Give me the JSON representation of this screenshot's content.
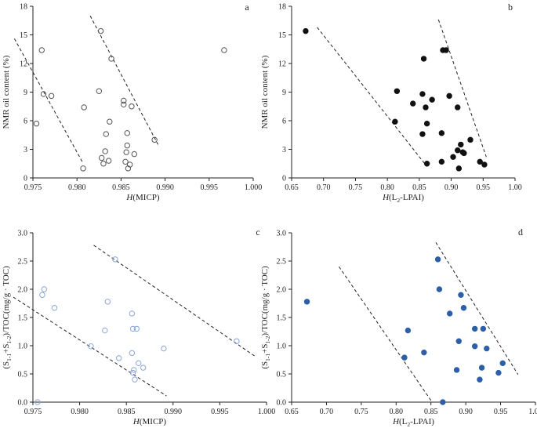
{
  "chart_data": [
    {
      "panel": "a",
      "type": "scatter",
      "marker": "open-circle",
      "marker_color": "#555555",
      "xlabel_prefix": "H",
      "xlabel_rest": "(MICP)",
      "ylabel": "NMR oil content  (%)",
      "xlim": [
        0.975,
        1.0
      ],
      "ylim": [
        0,
        18
      ],
      "xticks": [
        "0.975",
        "0.980",
        "0.985",
        "0.990",
        "0.995",
        "1.000"
      ],
      "xtick_values": [
        0.975,
        0.98,
        0.985,
        0.99,
        0.995,
        1.0
      ],
      "yticks": [
        "0",
        "3",
        "6",
        "9",
        "12",
        "15",
        "18"
      ],
      "ytick_values": [
        0,
        3,
        6,
        9,
        12,
        15,
        18
      ],
      "points": [
        {
          "x": 0.976,
          "y": 13.4
        },
        {
          "x": 0.9762,
          "y": 8.8
        },
        {
          "x": 0.9771,
          "y": 8.6
        },
        {
          "x": 0.9754,
          "y": 5.7
        },
        {
          "x": 0.9808,
          "y": 7.4
        },
        {
          "x": 0.9807,
          "y": 1.0
        },
        {
          "x": 0.9825,
          "y": 9.1
        },
        {
          "x": 0.9827,
          "y": 15.4
        },
        {
          "x": 0.9839,
          "y": 12.5
        },
        {
          "x": 0.9837,
          "y": 5.9
        },
        {
          "x": 0.9833,
          "y": 4.6
        },
        {
          "x": 0.9832,
          "y": 2.8
        },
        {
          "x": 0.9836,
          "y": 1.8
        },
        {
          "x": 0.9828,
          "y": 2.1
        },
        {
          "x": 0.983,
          "y": 1.5
        },
        {
          "x": 0.9853,
          "y": 8.1
        },
        {
          "x": 0.9853,
          "y": 7.7
        },
        {
          "x": 0.9862,
          "y": 7.5
        },
        {
          "x": 0.9857,
          "y": 4.7
        },
        {
          "x": 0.9857,
          "y": 3.4
        },
        {
          "x": 0.9856,
          "y": 2.7
        },
        {
          "x": 0.9865,
          "y": 2.5
        },
        {
          "x": 0.9855,
          "y": 1.7
        },
        {
          "x": 0.986,
          "y": 1.4
        },
        {
          "x": 0.9858,
          "y": 1.0
        },
        {
          "x": 0.9888,
          "y": 4.0
        },
        {
          "x": 0.9967,
          "y": 13.4
        }
      ],
      "trend_lines": [
        {
          "x": [
            0.9729,
            0.9806
          ],
          "y": [
            14.6,
            1.7
          ]
        },
        {
          "x": [
            0.9815,
            0.9892
          ],
          "y": [
            17.0,
            3.5
          ]
        }
      ]
    },
    {
      "panel": "b",
      "type": "scatter",
      "marker": "filled-circle",
      "marker_color": "#111111",
      "xlabel_prefix": "H",
      "xlabel_rest": "(L2-LPAI)",
      "ylabel": "NMR oil content  (%)",
      "xlim": [
        0.65,
        1.0
      ],
      "ylim": [
        0,
        18
      ],
      "xticks": [
        "0.65",
        "0.70",
        "0.75",
        "0.80",
        "0.85",
        "0.90",
        "0.95",
        "1.00"
      ],
      "xtick_values": [
        0.65,
        0.7,
        0.75,
        0.8,
        0.85,
        0.9,
        0.95,
        1.0
      ],
      "yticks": [
        "0",
        "3",
        "6",
        "9",
        "12",
        "15",
        "18"
      ],
      "ytick_values": [
        0,
        3,
        6,
        9,
        12,
        15,
        18
      ],
      "points": [
        {
          "x": 0.672,
          "y": 15.4
        },
        {
          "x": 0.815,
          "y": 9.1
        },
        {
          "x": 0.812,
          "y": 5.9
        },
        {
          "x": 0.84,
          "y": 7.8
        },
        {
          "x": 0.855,
          "y": 8.8
        },
        {
          "x": 0.86,
          "y": 7.4
        },
        {
          "x": 0.857,
          "y": 12.5
        },
        {
          "x": 0.855,
          "y": 4.6
        },
        {
          "x": 0.862,
          "y": 5.7
        },
        {
          "x": 0.862,
          "y": 1.5
        },
        {
          "x": 0.87,
          "y": 8.2
        },
        {
          "x": 0.885,
          "y": 4.7
        },
        {
          "x": 0.887,
          "y": 13.4
        },
        {
          "x": 0.892,
          "y": 13.4
        },
        {
          "x": 0.897,
          "y": 8.6
        },
        {
          "x": 0.885,
          "y": 1.7
        },
        {
          "x": 0.91,
          "y": 7.4
        },
        {
          "x": 0.903,
          "y": 2.2
        },
        {
          "x": 0.91,
          "y": 2.9
        },
        {
          "x": 0.915,
          "y": 3.5
        },
        {
          "x": 0.92,
          "y": 2.6
        },
        {
          "x": 0.918,
          "y": 2.7
        },
        {
          "x": 0.912,
          "y": 1.0
        },
        {
          "x": 0.93,
          "y": 4.0
        },
        {
          "x": 0.945,
          "y": 1.7
        },
        {
          "x": 0.952,
          "y": 1.4
        }
      ],
      "trend_lines": [
        {
          "x": [
            0.69,
            0.862
          ],
          "y": [
            15.8,
            1.2
          ]
        },
        {
          "x": [
            0.88,
            0.955
          ],
          "y": [
            16.6,
            2.2
          ]
        }
      ]
    },
    {
      "panel": "c",
      "type": "scatter",
      "marker": "open-circle",
      "marker_color": "#8ea6d6",
      "xlabel_prefix": "H",
      "xlabel_rest": "(MICP)",
      "ylabel": "(S1-1+S1-2)/TOC(mg/g · TOC)",
      "xlim": [
        0.975,
        1.0
      ],
      "ylim": [
        0,
        3.0
      ],
      "xticks": [
        "0.975",
        "0.980",
        "0.985",
        "0.990",
        "0.995",
        "1.000"
      ],
      "xtick_values": [
        0.975,
        0.98,
        0.985,
        0.99,
        0.995,
        1.0
      ],
      "yticks": [
        "0.0",
        "0.5",
        "1.0",
        "1.5",
        "2.0",
        "2.5",
        "3.0"
      ],
      "ytick_values": [
        0,
        0.5,
        1.0,
        1.5,
        2.0,
        2.5,
        3.0
      ],
      "points": [
        {
          "x": 0.9762,
          "y": 2.0
        },
        {
          "x": 0.976,
          "y": 1.9
        },
        {
          "x": 0.9773,
          "y": 1.67
        },
        {
          "x": 0.9755,
          "y": 0.0
        },
        {
          "x": 0.9812,
          "y": 0.99
        },
        {
          "x": 0.9827,
          "y": 1.27
        },
        {
          "x": 0.983,
          "y": 1.78
        },
        {
          "x": 0.9838,
          "y": 2.53
        },
        {
          "x": 0.9842,
          "y": 0.78
        },
        {
          "x": 0.9856,
          "y": 1.57
        },
        {
          "x": 0.9857,
          "y": 1.3
        },
        {
          "x": 0.9861,
          "y": 1.3
        },
        {
          "x": 0.9856,
          "y": 0.87
        },
        {
          "x": 0.9863,
          "y": 0.69
        },
        {
          "x": 0.9868,
          "y": 0.61
        },
        {
          "x": 0.9858,
          "y": 0.57
        },
        {
          "x": 0.9857,
          "y": 0.52
        },
        {
          "x": 0.9859,
          "y": 0.4
        },
        {
          "x": 0.989,
          "y": 0.95
        },
        {
          "x": 0.9968,
          "y": 1.08
        }
      ],
      "trend_lines": [
        {
          "x": [
            0.9729,
            0.9893
          ],
          "y": [
            1.86,
            0.11
          ]
        },
        {
          "x": [
            0.9815,
            0.9987
          ],
          "y": [
            2.78,
            0.82
          ]
        }
      ]
    },
    {
      "panel": "d",
      "type": "scatter",
      "marker": "filled-circle",
      "marker_color": "#2c5fa8",
      "xlabel_prefix": "H",
      "xlabel_rest": "(L2-LPAI)",
      "ylabel": "(S1-1+S1-2)/TOC(mg/g · TOC)",
      "xlim": [
        0.65,
        1.0
      ],
      "ylim": [
        0,
        3.0
      ],
      "xticks": [
        "0.65",
        "0.70",
        "0.75",
        "0.80",
        "0.85",
        "0.90",
        "0.95",
        "1.00"
      ],
      "xtick_values": [
        0.65,
        0.7,
        0.75,
        0.8,
        0.85,
        0.9,
        0.95,
        1.0
      ],
      "yticks": [
        "0.0",
        "0.5",
        "1.0",
        "1.5",
        "2.0",
        "2.5",
        "3.0"
      ],
      "ytick_values": [
        0,
        0.5,
        1.0,
        1.5,
        2.0,
        2.5,
        3.0
      ],
      "points": [
        {
          "x": 0.672,
          "y": 1.78
        },
        {
          "x": 0.817,
          "y": 1.27
        },
        {
          "x": 0.812,
          "y": 0.79
        },
        {
          "x": 0.84,
          "y": 0.88
        },
        {
          "x": 0.86,
          "y": 2.53
        },
        {
          "x": 0.862,
          "y": 2.0
        },
        {
          "x": 0.867,
          "y": 0.0
        },
        {
          "x": 0.877,
          "y": 1.57
        },
        {
          "x": 0.893,
          "y": 1.9
        },
        {
          "x": 0.897,
          "y": 1.67
        },
        {
          "x": 0.89,
          "y": 1.08
        },
        {
          "x": 0.887,
          "y": 0.57
        },
        {
          "x": 0.913,
          "y": 1.3
        },
        {
          "x": 0.925,
          "y": 1.3
        },
        {
          "x": 0.913,
          "y": 0.99
        },
        {
          "x": 0.93,
          "y": 0.95
        },
        {
          "x": 0.923,
          "y": 0.61
        },
        {
          "x": 0.92,
          "y": 0.4
        },
        {
          "x": 0.947,
          "y": 0.52
        },
        {
          "x": 0.953,
          "y": 0.69
        }
      ],
      "trend_lines": [
        {
          "x": [
            0.718,
            0.85
          ],
          "y": [
            2.4,
            0.03
          ]
        },
        {
          "x": [
            0.857,
            0.975
          ],
          "y": [
            2.83,
            0.49
          ]
        }
      ]
    }
  ]
}
